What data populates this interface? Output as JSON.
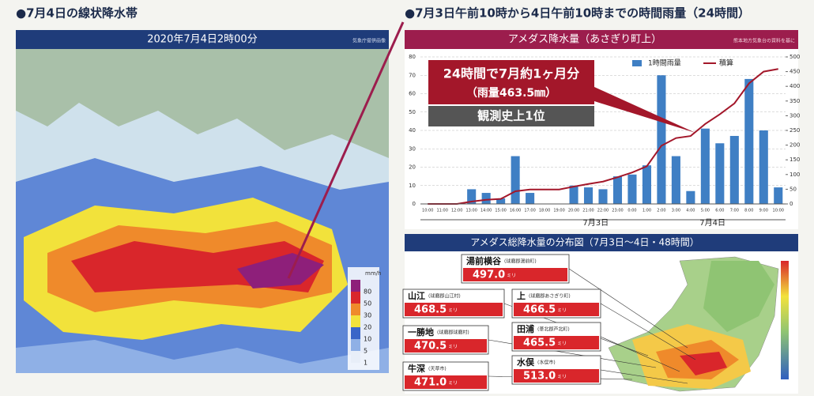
{
  "left": {
    "heading": "●7月4日の線状降水帯",
    "banner": "2020年7月4日2時00分",
    "credit": "気象庁提供画像",
    "legend_unit": "mm/h",
    "legend_labels": [
      "80",
      "50",
      "30",
      "20",
      "10",
      "5",
      "1"
    ]
  },
  "right_heading": "●7月3日午前10時から4日午前10時までの時間雨量（24時間）",
  "chart_data": {
    "type": "bar",
    "title": "アメダス降水量（あさぎり町上）",
    "credit": "熊本地方気象台の資料を基に",
    "categories": [
      "10:00",
      "11:00",
      "12:00",
      "13:00",
      "14:00",
      "15:00",
      "16:00",
      "17:00",
      "18:00",
      "19:00",
      "20:00",
      "21:00",
      "22:00",
      "23:00",
      "0:00",
      "1:00",
      "2:00",
      "3:00",
      "4:00",
      "5:00",
      "6:00",
      "7:00",
      "8:00",
      "9:00",
      "10:00"
    ],
    "series": [
      {
        "name": "1時間雨量",
        "color": "#3f7fc4",
        "values": [
          0,
          0,
          0,
          8,
          6,
          3,
          26,
          6,
          0,
          0,
          10,
          9,
          8,
          15,
          16,
          21,
          70,
          26,
          7,
          41,
          33,
          37,
          68,
          40,
          9
        ]
      },
      {
        "name": "積算",
        "color": "#a3172a",
        "axis": "y2",
        "type": "line",
        "values": [
          0,
          0,
          0,
          8,
          14,
          17,
          43,
          49,
          49,
          49,
          59,
          68,
          76,
          91,
          107,
          128,
          198,
          224,
          231,
          272,
          305,
          342,
          410,
          450,
          459
        ]
      }
    ],
    "ylim": [
      0,
      80
    ],
    "yticks": [
      0,
      10,
      20,
      30,
      40,
      50,
      60,
      70,
      80
    ],
    "y2lim": [
      0,
      500
    ],
    "y2ticks": [
      0,
      50,
      100,
      150,
      200,
      250,
      300,
      350,
      400,
      450,
      500
    ],
    "grid": true,
    "date_labels": [
      "7月3日",
      "7月4日"
    ],
    "annotation": [
      "24時間で7月約1ヶ月分",
      "（雨量463.5㎜）",
      "観測史上1位"
    ]
  },
  "distribution": {
    "title": "アメダス総降水量の分布図（7月3日～4日・48時間）",
    "stations": [
      {
        "name": "湯前横谷",
        "place": "(球磨郡湯前町)",
        "value": "497.0",
        "unit": "ミリ"
      },
      {
        "name": "山江",
        "place": "(球磨郡山江村)",
        "value": "468.5",
        "unit": "ミリ"
      },
      {
        "name": "上",
        "place": "(球磨郡あさぎり町)",
        "value": "466.5",
        "unit": "ミリ"
      },
      {
        "name": "一勝地",
        "place": "(球磨郡球磨村)",
        "value": "470.5",
        "unit": "ミリ"
      },
      {
        "name": "田浦",
        "place": "(葦北郡芦北町)",
        "value": "465.5",
        "unit": "ミリ"
      },
      {
        "name": "牛深",
        "place": "(天草市)",
        "value": "471.0",
        "unit": "ミリ"
      },
      {
        "name": "水俣",
        "place": "(水俣市)",
        "value": "513.0",
        "unit": "ミリ"
      }
    ]
  }
}
